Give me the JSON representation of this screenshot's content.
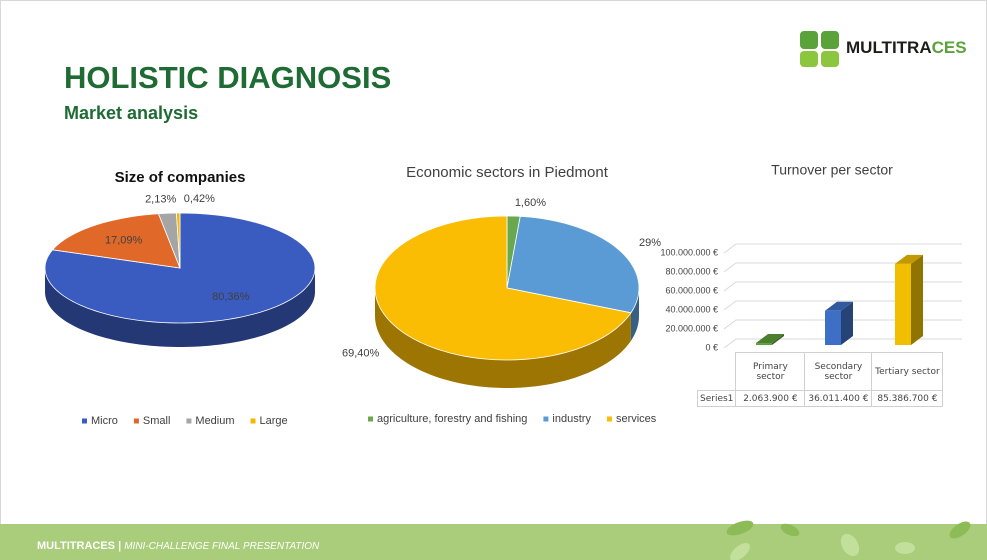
{
  "header": {
    "title": "HOLISTIC DIAGNOSIS",
    "subtitle": "Market analysis",
    "logo_main": "MULTITRA",
    "logo_accent": "CES"
  },
  "footer": {
    "brand": "MULTITRACES |",
    "tagline": "MINI-CHALLENGE FINAL PRESENTATION"
  },
  "chart_data": [
    {
      "type": "pie",
      "title": "Size of companies",
      "categories": [
        "Micro",
        "Small",
        "Medium",
        "Large"
      ],
      "values": [
        80.36,
        17.09,
        2.13,
        0.42
      ],
      "value_labels": [
        "80,36%",
        "17,09%",
        "2,13%",
        "0,42%"
      ],
      "colors": [
        "#3a5bbf",
        "#e0692a",
        "#a5a5a5",
        "#f5b800"
      ]
    },
    {
      "type": "pie",
      "title": "Economic sectors in Piedmont",
      "categories": [
        "agriculture, forestry and fishing",
        "industry",
        "services"
      ],
      "values": [
        1.6,
        29,
        69.4
      ],
      "value_labels": [
        "1,60%",
        "29%",
        "69,40%"
      ],
      "colors": [
        "#6aa84f",
        "#5b9bd5",
        "#fbbc04"
      ]
    },
    {
      "type": "bar",
      "title": "Turnover per sector",
      "categories": [
        "Primary sector",
        "Secondary sector",
        "Tertiary sector"
      ],
      "series": [
        {
          "name": "Series1",
          "colors": [
            "#5e9e3b",
            "#3d6fc6",
            "#f2bf00"
          ],
          "values": [
            2063900,
            36011400,
            85386700
          ],
          "value_labels": [
            "2.063.900 €",
            "36.011.400 €",
            "85.386.700 €"
          ]
        }
      ],
      "ylim": [
        0,
        100000000
      ],
      "yticks": [
        {
          "value": 0,
          "label": "0 €"
        },
        {
          "value": 20000000,
          "label": "20.000.000 €"
        },
        {
          "value": 40000000,
          "label": "40.000.000 €"
        },
        {
          "value": 60000000,
          "label": "60.000.000 €"
        },
        {
          "value": 80000000,
          "label": "80.000.000 €"
        },
        {
          "value": 100000000,
          "label": "100.000.000 €"
        }
      ],
      "grid": true
    }
  ]
}
